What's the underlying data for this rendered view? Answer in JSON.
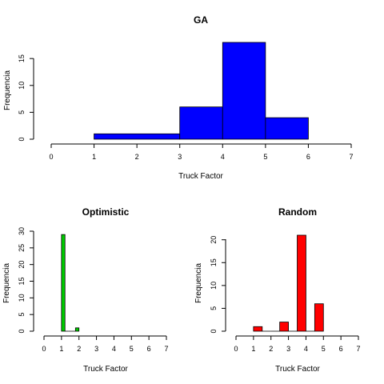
{
  "chart_data": [
    {
      "type": "bar",
      "title": "GA",
      "xlabel": "Truck Factor",
      "ylabel": "Frequencia",
      "color": "#0000ff",
      "bins": [
        [
          1,
          3
        ],
        [
          3,
          4
        ],
        [
          4,
          5
        ],
        [
          5,
          6
        ]
      ],
      "values": [
        1,
        6,
        18,
        4
      ],
      "xlim": [
        0,
        7
      ],
      "xticks": [
        "0",
        "1",
        "2",
        "3",
        "4",
        "5",
        "6",
        "7"
      ],
      "ylim": [
        0,
        18
      ],
      "yticks": [
        "0",
        "5",
        "10",
        "15"
      ]
    },
    {
      "type": "bar",
      "title": "Optimistic",
      "xlabel": "Truck Factor",
      "ylabel": "Frequencia",
      "color": "#00cc00",
      "bins": [
        [
          1,
          1.2
        ],
        [
          1.2,
          1.4
        ],
        [
          1.4,
          1.6
        ],
        [
          1.6,
          1.8
        ],
        [
          1.8,
          2
        ]
      ],
      "values": [
        29,
        0,
        0,
        0,
        1
      ],
      "xlim": [
        0,
        7
      ],
      "xticks": [
        "0",
        "1",
        "2",
        "3",
        "4",
        "5",
        "6",
        "7"
      ],
      "ylim": [
        0,
        30
      ],
      "yticks": [
        "0",
        "5",
        "10",
        "15",
        "20",
        "25",
        "30"
      ]
    },
    {
      "type": "bar",
      "title": "Random",
      "xlabel": "Truck Factor",
      "ylabel": "Frequencia",
      "color": "#ff0000",
      "bins": [
        [
          1,
          1.5
        ],
        [
          1.5,
          2
        ],
        [
          2,
          2.5
        ],
        [
          2.5,
          3
        ],
        [
          3,
          3.5
        ],
        [
          3.5,
          4
        ],
        [
          4,
          4.5
        ],
        [
          4.5,
          5
        ]
      ],
      "values": [
        1,
        0,
        0,
        2,
        0,
        21,
        0,
        6
      ],
      "xlim": [
        0,
        7
      ],
      "xticks": [
        "0",
        "1",
        "2",
        "3",
        "4",
        "5",
        "6",
        "7"
      ],
      "ylim": [
        0,
        21
      ],
      "yticks": [
        "0",
        "5",
        "10",
        "15",
        "20"
      ]
    }
  ]
}
